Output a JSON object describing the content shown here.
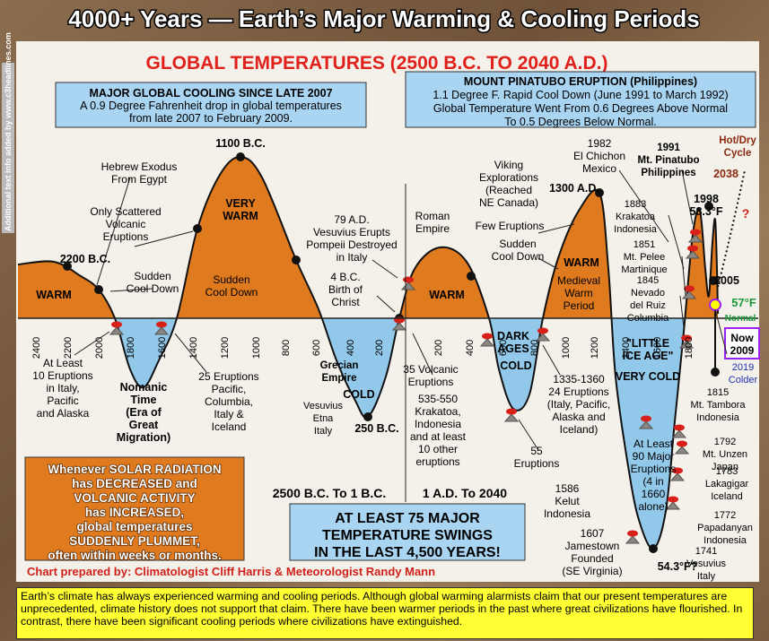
{
  "header": {
    "title": "4000+ Years — Earth’s Major Warming & Cooling Periods",
    "side_note": "Additional text info added by www.c3headlines.com"
  },
  "chart": {
    "title": "GLOBAL TEMPERATURES (2500 B.C. TO 2040 A.D.)",
    "cooling_box": [
      "MAJOR GLOBAL COOLING SINCE LATE 2007",
      "A 0.9 Degree Fahrenheit drop in global temperatures",
      "from late 2007 to February 2009."
    ],
    "pinatubo_box": [
      "MOUNT PINATUBO ERUPTION (Philippines)",
      "1.1 Degree F. Rapid Cool Down (June 1991 to March 1992)",
      "Global Temperature Went From 0.6 Degrees Above Normal",
      "To 0.5 Degrees Below Normal."
    ],
    "bc_ticks": [
      "2400",
      "2200",
      "2000",
      "1800",
      "1600",
      "1400",
      "1200",
      "1000",
      "800",
      "600",
      "400",
      "200"
    ],
    "ad_ticks": [
      "200",
      "400",
      "600",
      "800",
      "1000",
      "1200",
      "1400",
      "1600",
      "1800"
    ],
    "annotations": {
      "bc1100": [
        "1100 B.C."
      ],
      "exodus": [
        "Hebrew Exodus",
        "From Egypt"
      ],
      "scattered": [
        "Only Scattered",
        "Volcanic",
        "Eruptions"
      ],
      "verywarm": [
        "VERY",
        "WARM"
      ],
      "cool2": [
        "Sudden",
        "Cool Down"
      ],
      "bc2200": [
        "2200 B.C."
      ],
      "cool1": [
        "Sudden",
        "Cool Down"
      ],
      "warm1": [
        "WARM"
      ],
      "vesuvius79": [
        "79 A.D.",
        "Vesuvius Erupts",
        "Pompeii Destroyed",
        "in Italy"
      ],
      "christ": [
        "4 B.C.",
        "Birth of",
        "Christ"
      ],
      "roman": [
        "Roman",
        "Empire"
      ],
      "warm2": [
        "WARM"
      ],
      "viking": [
        "Viking",
        "Explorations",
        "(Reached",
        "NE Canada)"
      ],
      "ad1300": [
        "1300 A.D."
      ],
      "few": [
        "Few Eruptions"
      ],
      "cool3": [
        "Sudden",
        "Cool Down"
      ],
      "warm3": [
        "WARM"
      ],
      "medieval": [
        "Medieval",
        "Warm",
        "Period"
      ],
      "chichon": [
        "1982",
        "El Chichon",
        "Mexico"
      ],
      "pinatubo": [
        "1991",
        "Mt. Pinatubo",
        "Philippines"
      ],
      "krakatoa1883": [
        "1883",
        "Krakatoa",
        "Indonesia"
      ],
      "pelee": [
        "1851",
        "Mt. Pelee",
        "Martinique"
      ],
      "ruiz": [
        "1845",
        "Nevado",
        "del Ruiz",
        "Columbia"
      ],
      "y1998": [
        "1998",
        "58.3°F"
      ],
      "hotdry": [
        "Hot/Dry",
        "Cycle"
      ],
      "y2038": [
        "2038"
      ],
      "q": [
        "?"
      ],
      "y2005": [
        "2005"
      ],
      "normal57": [
        "57°F"
      ],
      "normal": [
        "Normal"
      ],
      "now": [
        "Now",
        "2009"
      ],
      "y2019": [
        "2019",
        "Colder"
      ],
      "italy10": [
        "At Least",
        "10 Eruptions",
        "in Italy,",
        "Pacific",
        "and Alaska"
      ],
      "nomanic": [
        "Nomanic",
        "Time",
        "(Era of",
        "Great",
        "Migration)"
      ],
      "e25": [
        "25 Eruptions",
        "Pacific,",
        "Columbia,",
        "Italy &",
        "Iceland"
      ],
      "grecian": [
        "Grecian",
        "Empire"
      ],
      "cold1": [
        "COLD"
      ],
      "etna": [
        "Vesuvius",
        "Etna",
        "Italy"
      ],
      "bc250": [
        "250 B.C."
      ],
      "e35": [
        "35 Volcanic",
        "Eruptions"
      ],
      "krakatoa535": [
        "535-550",
        "Krakatoa,",
        "Indonesia",
        "and at least",
        "10 other",
        "eruptions"
      ],
      "darkages": [
        "DARK",
        "AGES"
      ],
      "cold2": [
        "COLD"
      ],
      "e1335": [
        "1335-1360",
        "24 Eruptions",
        "(Italy, Pacific,",
        "Alaska and",
        "Iceland)"
      ],
      "e55": [
        "55",
        "Eruptions"
      ],
      "lia": [
        "\"LITTLE",
        "ICE AGE\""
      ],
      "verycold": [
        "VERY COLD"
      ],
      "e90": [
        "At Least",
        "90 Major",
        "Eruptions",
        "(4 in",
        "1660",
        "alone)"
      ],
      "tambora": [
        "1815",
        "Mt. Tambora",
        "Indonesia"
      ],
      "unzen": [
        "1792",
        "Mt. Unzen",
        "Japan"
      ],
      "laki": [
        "1783",
        "Lakagigar",
        "Iceland"
      ],
      "papa": [
        "1772",
        "Papadanyan",
        "Indonesia"
      ],
      "vesuvius1741": [
        "1741",
        "Vesuvius",
        "Italy"
      ],
      "kelut": [
        "1586",
        "Kelut",
        "Indonesia"
      ],
      "jamestown": [
        "1607",
        "Jamestown",
        "Founded",
        "(SE Virginia)"
      ],
      "f543": [
        "54.3°F?"
      ]
    },
    "solar_box": [
      "Whenever SOLAR RADIATION",
      "has DECREASED and",
      "VOLCANIC ACTIVITY",
      "has INCREASED,",
      "global temperatures",
      "SUDDENLY PLUMMET,",
      "often within weeks or months."
    ],
    "bc_span": "2500 B.C. To 1 B.C.",
    "ad_span": "1 A.D. To 2040",
    "swings_box": [
      "AT LEAST 75 MAJOR",
      "TEMPERATURE SWINGS",
      "IN THE LAST 4,500 YEARS!"
    ],
    "credit": "Chart prepared by: Climatologist Cliff Harris & Meteorologist Randy Mann"
  },
  "footer": {
    "text": "Earth’s climate has always experienced warming and cooling periods. Although global warming alarmists claim that our present temperatures are unprecedented, climate history does not support that claim. There have been warmer periods in the past where great civilizations have flourished. In contrast, there have been significant cooling periods where civilizations have extinguished."
  }
}
